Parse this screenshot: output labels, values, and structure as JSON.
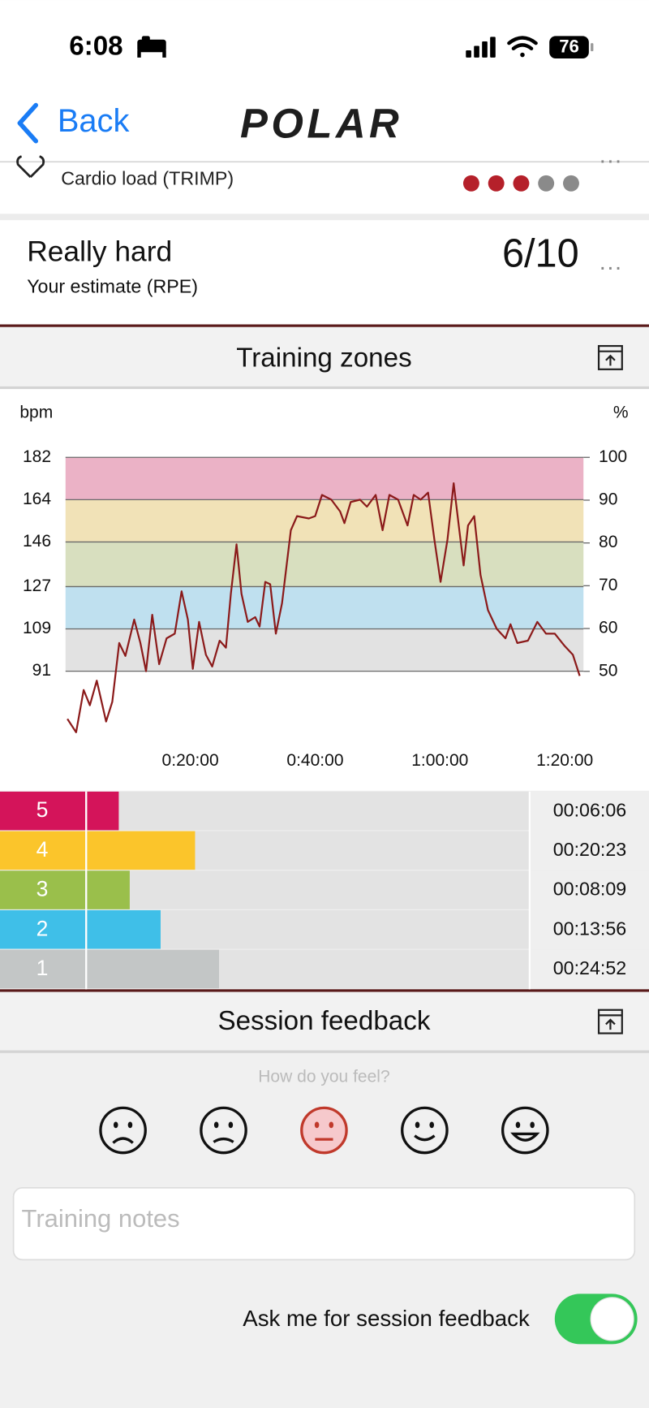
{
  "status_bar": {
    "time": "6:08",
    "battery": "76"
  },
  "nav": {
    "back": "Back",
    "logo": "POLAR"
  },
  "cardio_load": {
    "label": "Cardio load (TRIMP)",
    "filled": 3,
    "total": 5,
    "colors": [
      "#b5202a",
      "#8a8a8a"
    ]
  },
  "rpe": {
    "title": "Really hard",
    "subtitle": "Your estimate (RPE)",
    "score": "6/10"
  },
  "training_zones": {
    "title": "Training zones"
  },
  "chart_data": {
    "type": "line",
    "ylabel": "bpm",
    "y2label": "%",
    "x": [
      0.3,
      1.7,
      2.9,
      3.9,
      5,
      6.5,
      7.5,
      8.6,
      9.6,
      11,
      12,
      12.9,
      13.9,
      15,
      16.2,
      17.5,
      18.6,
      19.6,
      20.4,
      21.4,
      22.5,
      23.5,
      24.7,
      25.7,
      26.5,
      27.4,
      28.2,
      29.2,
      30.4,
      31.1,
      32,
      32.8,
      33.7,
      34.7,
      36.1,
      37.1,
      39,
      40,
      41.1,
      42.6,
      44,
      44.7,
      45.7,
      47.2,
      48.3,
      49.7,
      50.8,
      51.9,
      53.3,
      54.8,
      55.8,
      56.9,
      58.1,
      59.1,
      60.1,
      61.2,
      62.2,
      63.1,
      63.8,
      64.5,
      65.5,
      66.5,
      67.7,
      69.1,
      70.5,
      71.3,
      72.4,
      74.1,
      75.6,
      77,
      78.4,
      79.9,
      81.3,
      82.4
    ],
    "series": [
      {
        "color": "#8b1a1a",
        "values": [
          70.7,
          65,
          83,
          76.5,
          87,
          69.6,
          78,
          103,
          97.5,
          113,
          103,
          91,
          115,
          94,
          105,
          107,
          125,
          113,
          92,
          112,
          98,
          93,
          104,
          101,
          124,
          145,
          124,
          112,
          114,
          110,
          129,
          128,
          107,
          120,
          151,
          157,
          156,
          157,
          166,
          164,
          159,
          154,
          163,
          164,
          161,
          166,
          151,
          166,
          164,
          153,
          166,
          164,
          167,
          147,
          129,
          147,
          171,
          151,
          136,
          153,
          157,
          132,
          117,
          109,
          105,
          111,
          103,
          104,
          112,
          107,
          107,
          102,
          98,
          89
        ]
      }
    ],
    "xlim": [
      0,
      83
    ],
    "xticks": [
      {
        "value": 20,
        "label": "0:20:00"
      },
      {
        "value": 40,
        "label": "0:40:00"
      },
      {
        "value": 60,
        "label": "1:00:00"
      },
      {
        "value": 80,
        "label": "1:20:00"
      }
    ],
    "ylim": [
      60,
      182
    ],
    "yticks": [
      91,
      109,
      127,
      146,
      164,
      182
    ],
    "y2lim": [
      33,
      100
    ],
    "y2ticks": [
      50,
      60,
      70,
      80,
      90,
      100
    ],
    "zone_band_colors": [
      "#e2e2e2",
      "#bfe0ef",
      "#d8dfbf",
      "#f1e2b7",
      "#ebb2c6"
    ],
    "grid": true
  },
  "zone_table": {
    "labels": [
      "5",
      "4",
      "3",
      "2",
      "1"
    ],
    "colors": [
      "#d4145a",
      "#fbc52b",
      "#9abf4b",
      "#3fbfe8",
      "#c3c6c6"
    ],
    "values": [
      6.1,
      20.383,
      8.15,
      13.933,
      24.867
    ],
    "value_labels": [
      "00:06:06",
      "00:20:23",
      "00:08:09",
      "00:13:56",
      "00:24:52"
    ]
  },
  "session_feedback": {
    "title": "Session feedback",
    "question": "How do you feel?",
    "selected_mood": 2,
    "notes_placeholder": "Training notes",
    "toggle_label": "Ask me for session feedback",
    "toggle_on": true
  }
}
